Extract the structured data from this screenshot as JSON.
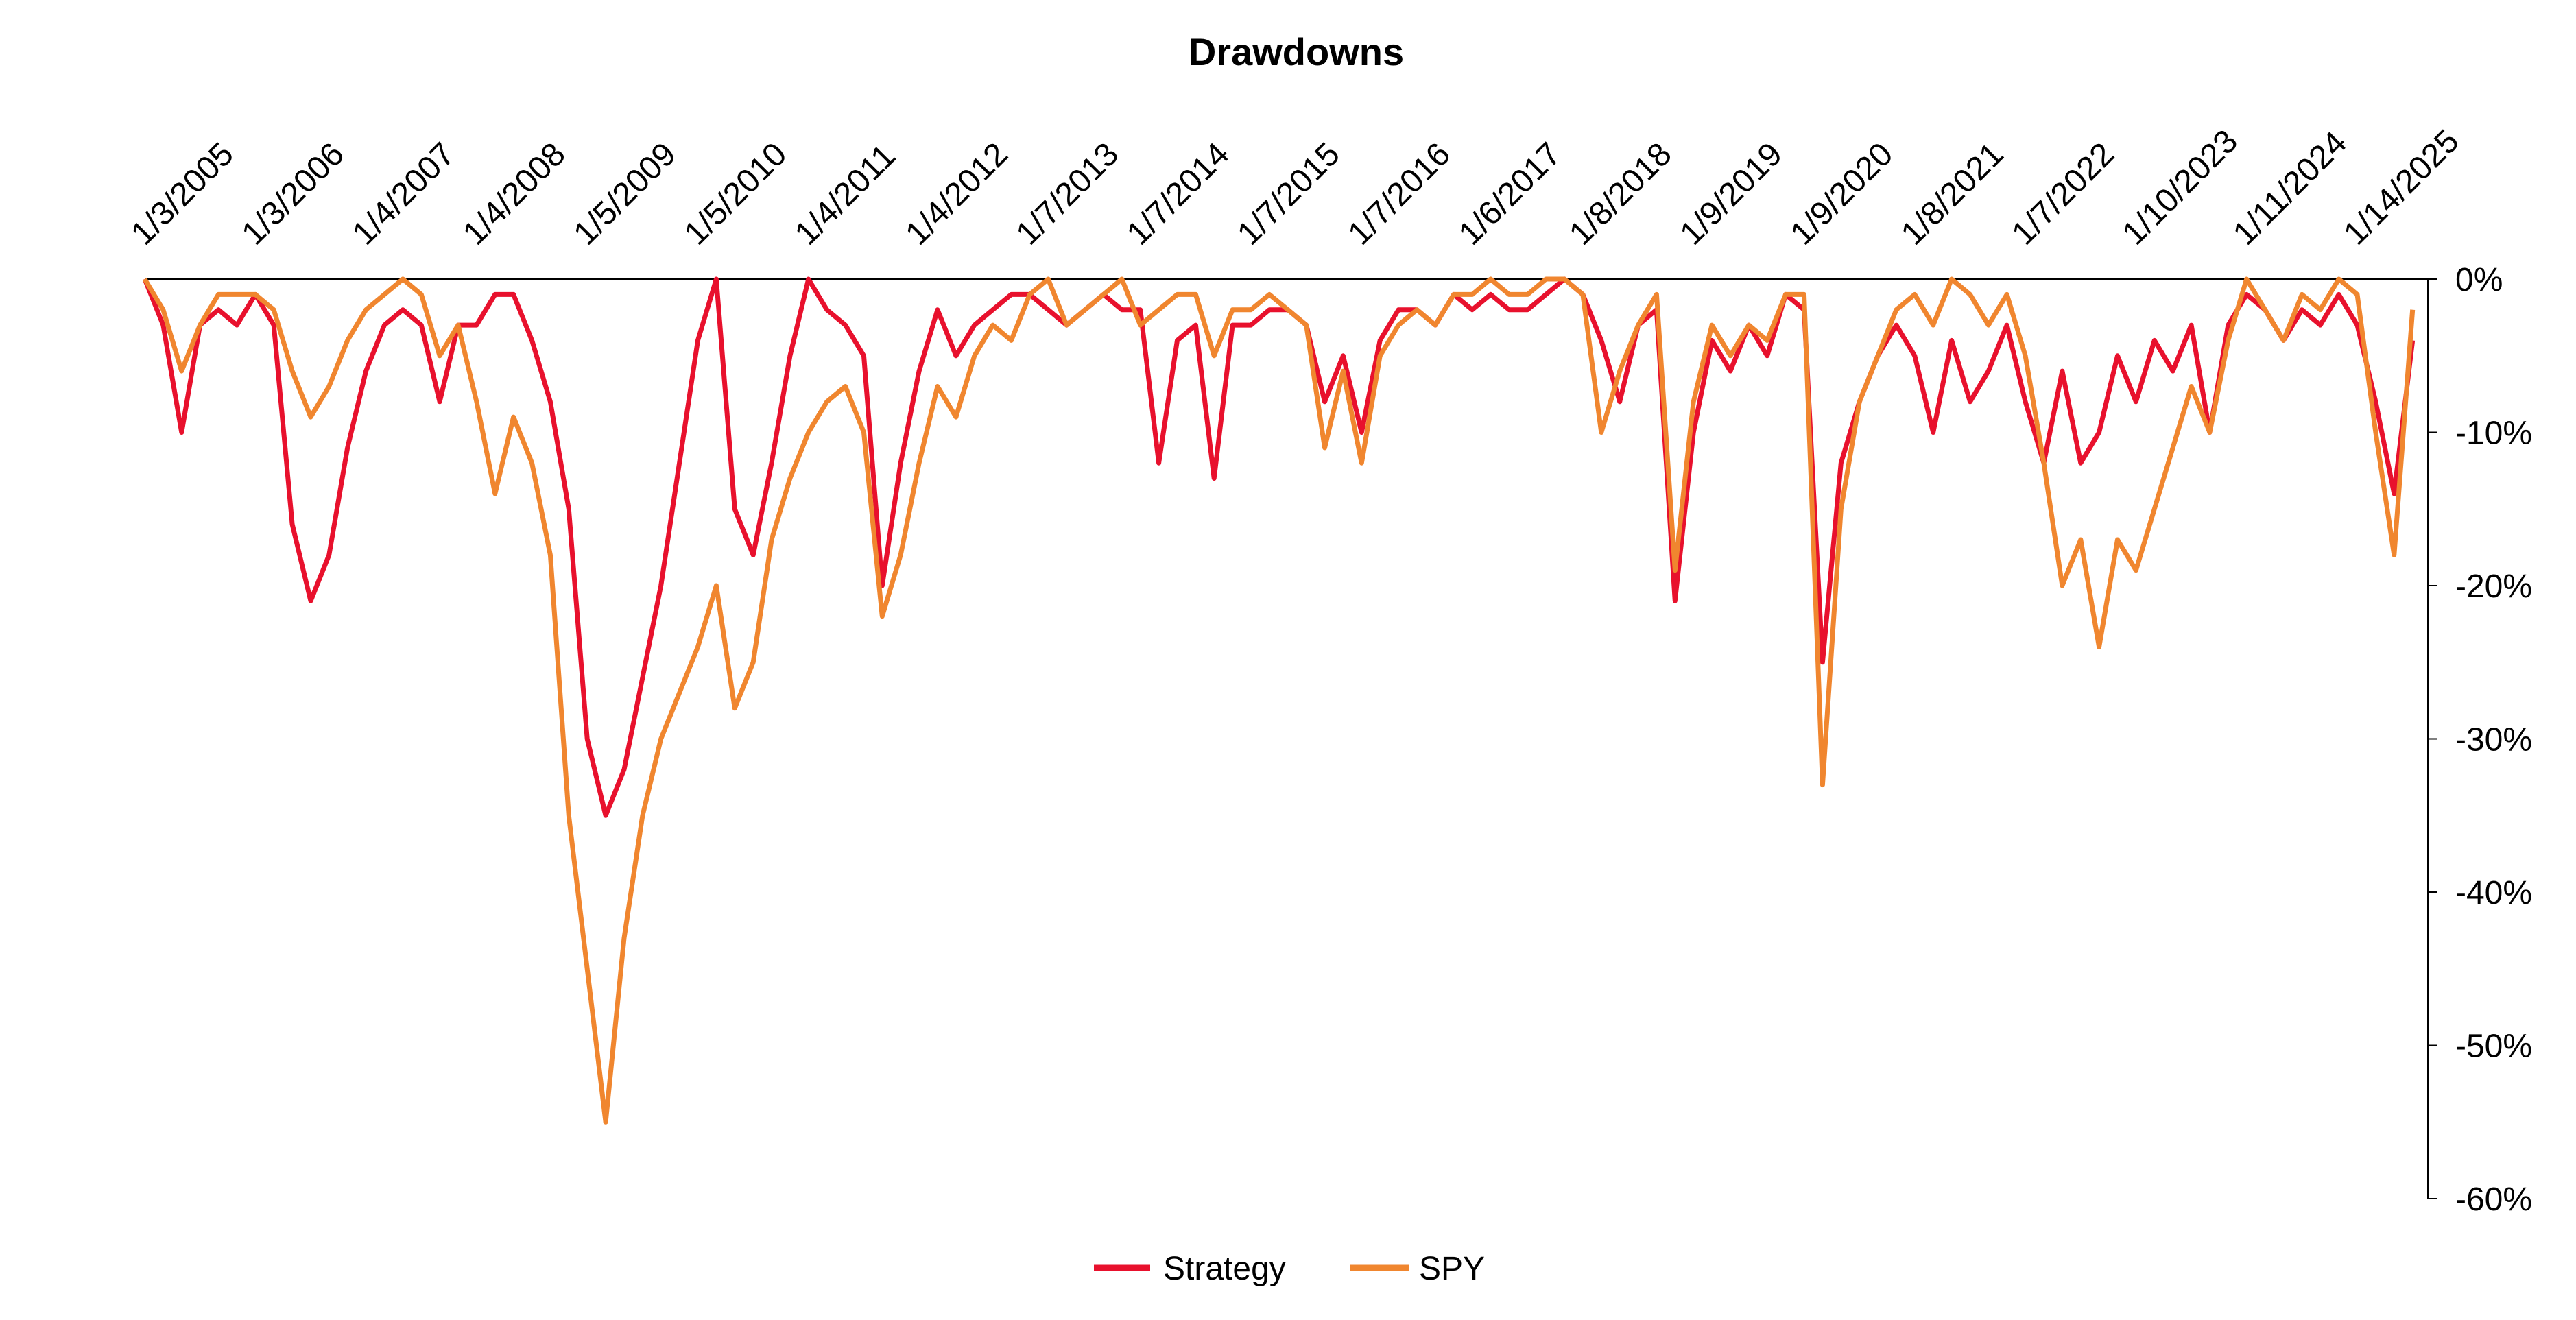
{
  "chart_data": {
    "type": "line",
    "title": "Drawdowns",
    "categories": [
      "1/3/2005",
      null,
      null,
      null,
      null,
      null,
      "1/3/2006",
      null,
      null,
      null,
      null,
      null,
      "1/4/2007",
      null,
      null,
      null,
      null,
      null,
      "1/4/2008",
      null,
      null,
      null,
      null,
      null,
      "1/5/2009",
      null,
      null,
      null,
      null,
      null,
      "1/5/2010",
      null,
      null,
      null,
      null,
      null,
      "1/4/2011",
      null,
      null,
      null,
      null,
      null,
      "1/4/2012",
      null,
      null,
      null,
      null,
      null,
      "1/7/2013",
      null,
      null,
      null,
      null,
      null,
      "1/7/2014",
      null,
      null,
      null,
      null,
      null,
      "1/7/2015",
      null,
      null,
      null,
      null,
      null,
      "1/7/2016",
      null,
      null,
      null,
      null,
      null,
      "1/6/2017",
      null,
      null,
      null,
      null,
      null,
      "1/8/2018",
      null,
      null,
      null,
      null,
      null,
      "1/9/2019",
      null,
      null,
      null,
      null,
      null,
      "1/9/2020",
      null,
      null,
      null,
      null,
      null,
      "1/8/2021",
      null,
      null,
      null,
      null,
      null,
      "1/7/2022",
      null,
      null,
      null,
      null,
      null,
      "1/10/2023",
      null,
      null,
      null,
      null,
      null,
      "1/11/2024",
      null,
      null,
      null,
      null,
      null,
      "1/14/2025",
      null,
      null,
      null
    ],
    "series": [
      {
        "name": "Strategy",
        "color": "#e8112d",
        "values": [
          0,
          -3,
          -10,
          -3,
          -2,
          -3,
          -1,
          -3,
          -16,
          -21,
          -18,
          -11,
          -6,
          -3,
          -2,
          -3,
          -8,
          -3,
          -3,
          -1,
          -1,
          -4,
          -8,
          -15,
          -30,
          -35,
          -32,
          -26,
          -20,
          -12,
          -4,
          0,
          -15,
          -18,
          -12,
          -5,
          0,
          -2,
          -3,
          -5,
          -20,
          -12,
          -6,
          -2,
          -5,
          -3,
          -2,
          -1,
          -1,
          -2,
          -3,
          -2,
          -1,
          -2,
          -2,
          -12,
          -4,
          -3,
          -13,
          -3,
          -3,
          -2,
          -2,
          -3,
          -8,
          -5,
          -10,
          -4,
          -2,
          -2,
          -3,
          -1,
          -2,
          -1,
          -2,
          -2,
          -1,
          0,
          -1,
          -4,
          -8,
          -3,
          -2,
          -21,
          -10,
          -4,
          -6,
          -3,
          -5,
          -1,
          -2,
          -25,
          -12,
          -8,
          -5,
          -3,
          -5,
          -10,
          -4,
          -8,
          -6,
          -3,
          -8,
          -12,
          -6,
          -12,
          -10,
          -5,
          -8,
          -4,
          -6,
          -3,
          -10,
          -3,
          -1,
          -2,
          -4,
          -2,
          -3,
          -1,
          -3,
          -8,
          -14,
          -4
        ]
      },
      {
        "name": "SPY",
        "color": "#f0862f",
        "values": [
          0,
          -2,
          -6,
          -3,
          -1,
          -1,
          -1,
          -2,
          -6,
          -9,
          -7,
          -4,
          -2,
          -1,
          0,
          -1,
          -5,
          -3,
          -8,
          -14,
          -9,
          -12,
          -18,
          -35,
          -45,
          -55,
          -43,
          -35,
          -30,
          -27,
          -24,
          -20,
          -28,
          -25,
          -17,
          -13,
          -10,
          -8,
          -7,
          -10,
          -22,
          -18,
          -12,
          -7,
          -9,
          -5,
          -3,
          -4,
          -1,
          0,
          -3,
          -2,
          -1,
          0,
          -3,
          -2,
          -1,
          -1,
          -5,
          -2,
          -2,
          -1,
          -2,
          -3,
          -11,
          -6,
          -12,
          -5,
          -3,
          -2,
          -3,
          -1,
          -1,
          0,
          -1,
          -1,
          0,
          0,
          -1,
          -10,
          -6,
          -3,
          -1,
          -19,
          -8,
          -3,
          -5,
          -3,
          -4,
          -1,
          -1,
          -33,
          -15,
          -8,
          -5,
          -2,
          -1,
          -3,
          0,
          -1,
          -3,
          -1,
          -5,
          -12,
          -20,
          -17,
          -24,
          -17,
          -19,
          -15,
          -11,
          -7,
          -10,
          -4,
          0,
          -2,
          -4,
          -1,
          -2,
          0,
          -1,
          -10,
          -18,
          -2
        ]
      }
    ],
    "ylim": [
      -60,
      0
    ],
    "yticks": [
      {
        "value": 0,
        "label": "0%"
      },
      {
        "value": -10,
        "label": "-10%"
      },
      {
        "value": -20,
        "label": "-20%"
      },
      {
        "value": -30,
        "label": "-30%"
      },
      {
        "value": -40,
        "label": "-40%"
      },
      {
        "value": -50,
        "label": "-50%"
      },
      {
        "value": -60,
        "label": "-60%"
      }
    ],
    "legend": "bottom"
  }
}
